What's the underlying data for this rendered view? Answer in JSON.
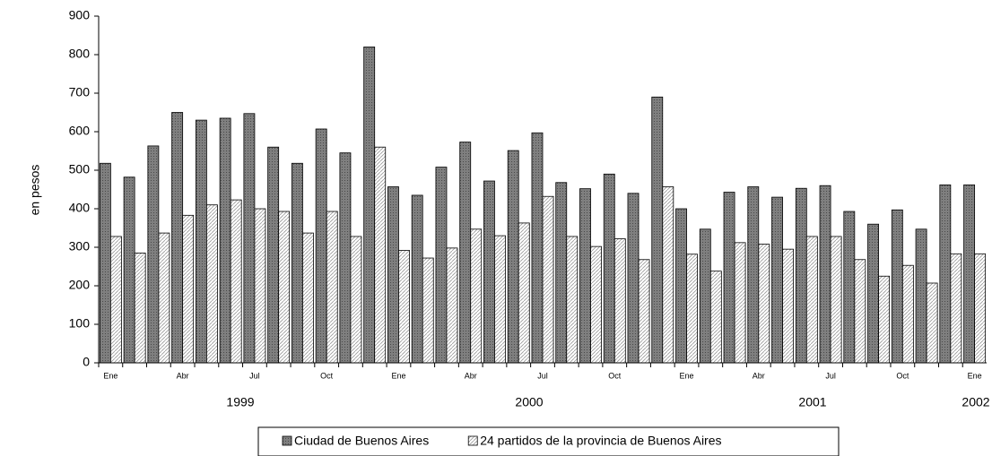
{
  "chart_data": {
    "type": "bar",
    "y_label": "en pesos",
    "categories": [
      "Ene",
      null,
      null,
      "Abr",
      null,
      null,
      "Jul",
      null,
      null,
      "Oct",
      null,
      null,
      "Ene",
      null,
      null,
      "Abr",
      null,
      null,
      "Jul",
      null,
      null,
      "Oct",
      null,
      null,
      "Ene",
      null,
      null,
      "Abr",
      null,
      null,
      "Jul",
      null,
      null,
      "Oct",
      null,
      null,
      "Ene"
    ],
    "years": [
      "1999",
      "2000",
      "2001",
      "2002"
    ],
    "series": [
      {
        "name": "Ciudad de Buenos Aires",
        "color": "#7f7f7f",
        "values": [
          518,
          482,
          563,
          650,
          630,
          635,
          647,
          560,
          518,
          607,
          545,
          820,
          457,
          435,
          508,
          573,
          472,
          551,
          597,
          468,
          452,
          490,
          440,
          690,
          400,
          347,
          443,
          457,
          430,
          453,
          460,
          393,
          360,
          397,
          347,
          462,
          462
        ]
      },
      {
        "name": "24 partidos de la provincia de Buenos Aires",
        "color": "#ffffff",
        "values": [
          328,
          285,
          337,
          383,
          410,
          423,
          400,
          393,
          337,
          393,
          328,
          560,
          292,
          272,
          298,
          347,
          330,
          363,
          432,
          328,
          302,
          322,
          268,
          457,
          282,
          238,
          312,
          308,
          295,
          328,
          328,
          268,
          225,
          253,
          207,
          283,
          283
        ]
      }
    ],
    "ylim": [
      0,
      900
    ],
    "yticks": [
      0,
      100,
      200,
      300,
      400,
      500,
      600,
      700,
      800,
      900
    ],
    "grid": false,
    "legend": "bottom"
  }
}
